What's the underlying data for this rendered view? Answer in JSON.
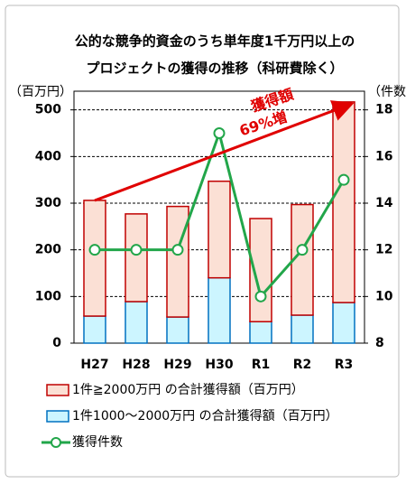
{
  "chart_data": {
    "type": "bar",
    "title": [
      "公的な競争的資金のうち単年度1千万円以上の",
      "プロジェクトの獲得の推移（科研費除く）"
    ],
    "y_label": "（百万円）",
    "y2_label": "（件数）",
    "categories": [
      "H27",
      "H28",
      "H29",
      "H30",
      "R1",
      "R2",
      "R3"
    ],
    "series": [
      {
        "name": "1件≧2000万円 の合計獲得額（百万円）",
        "color": "#fbe0d5",
        "edge": "#c00000",
        "values": [
          248,
          188,
          237,
          207,
          221,
          237,
          430
        ]
      },
      {
        "name": "1件1000～2000万円 の合計獲得額（百万円）",
        "color": "#ccf5ff",
        "edge": "#0070c0",
        "values": [
          58,
          89,
          56,
          140,
          46,
          60,
          87
        ]
      },
      {
        "name": "獲得件数",
        "type": "line",
        "axis": "y2",
        "color": "#22a64a",
        "values": [
          12,
          12,
          12,
          17,
          10,
          12,
          15
        ]
      }
    ],
    "annotation": [
      "獲得額",
      "69%増"
    ],
    "ylim": [
      0,
      540
    ],
    "yticks": [
      0,
      100,
      200,
      300,
      400,
      500
    ],
    "y2lim": [
      8,
      18.8
    ],
    "y2ticks": [
      8,
      10,
      12,
      14,
      16,
      18
    ],
    "grid": true
  }
}
